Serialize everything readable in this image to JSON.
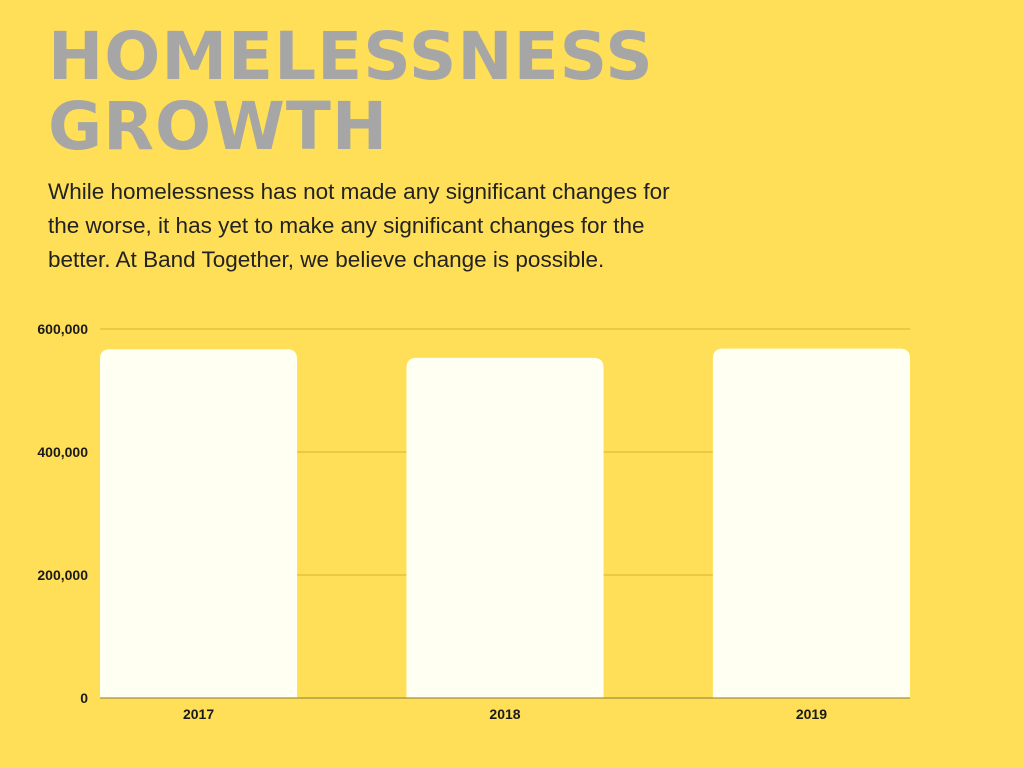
{
  "header": {
    "title_line1": "HOMELESSNESS",
    "title_line2": "GROWTH",
    "description": "While homelessness has not made any significant changes for the worse, it has yet to make any significant changes for the better. At Band Together, we believe change is possible."
  },
  "colors": {
    "background": "#FFDF57",
    "bar": "#FFFFF2",
    "title": "#A6A6A6",
    "gridline": "#D9B12F"
  },
  "chart_data": {
    "type": "bar",
    "categories": [
      "2017",
      "2018",
      "2019"
    ],
    "values": [
      567000,
      553000,
      568000
    ],
    "yticks": [
      {
        "value": 0,
        "label": "0"
      },
      {
        "value": 200000,
        "label": "200,000"
      },
      {
        "value": 400000,
        "label": "400,000"
      },
      {
        "value": 600000,
        "label": "600,000"
      }
    ],
    "ylim": [
      0,
      600000
    ],
    "grid": true,
    "legend": "none"
  }
}
